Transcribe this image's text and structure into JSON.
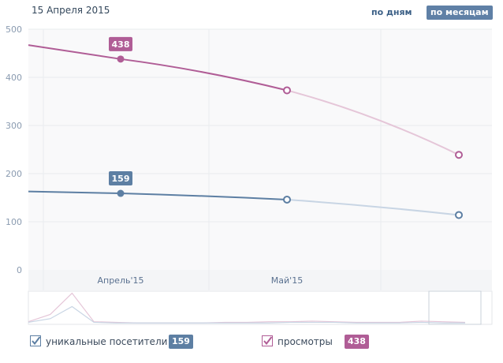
{
  "header": {
    "date": "15 Апреля 2015",
    "period_days": "по дням",
    "period_months": "по месяцам"
  },
  "legend": {
    "visitors_label": "уникальные посетители",
    "visitors_value": "159",
    "views_label": "просмотры",
    "views_value": "438"
  },
  "colors": {
    "visitors": "#5d7fa3",
    "views": "#b05d96",
    "visitors_light": "#c8d5e4",
    "views_light": "#e5c6d8"
  },
  "chart_data": {
    "type": "line",
    "categories": [
      "Апрель'15",
      "Май'15",
      ""
    ],
    "ylim": [
      0,
      500
    ],
    "yticks": [
      "0",
      "100",
      "200",
      "300",
      "400",
      "500"
    ],
    "series": [
      {
        "name": "уникальные посетители",
        "values": [
          159,
          146,
          114
        ],
        "start": 163,
        "label": "159"
      },
      {
        "name": "просмотры",
        "values": [
          438,
          373,
          239
        ],
        "start": 467,
        "label": "438"
      }
    ],
    "navigator": {
      "visitors": [
        2,
        8,
        28,
        2,
        1,
        1,
        1,
        1,
        1,
        1,
        1,
        1,
        2,
        2,
        2,
        1,
        1,
        1,
        2,
        1,
        1
      ],
      "views": [
        3,
        15,
        50,
        3,
        2,
        1,
        1,
        1,
        1,
        2,
        2,
        3,
        3,
        4,
        3,
        2,
        2,
        2,
        4,
        3,
        2
      ]
    }
  }
}
